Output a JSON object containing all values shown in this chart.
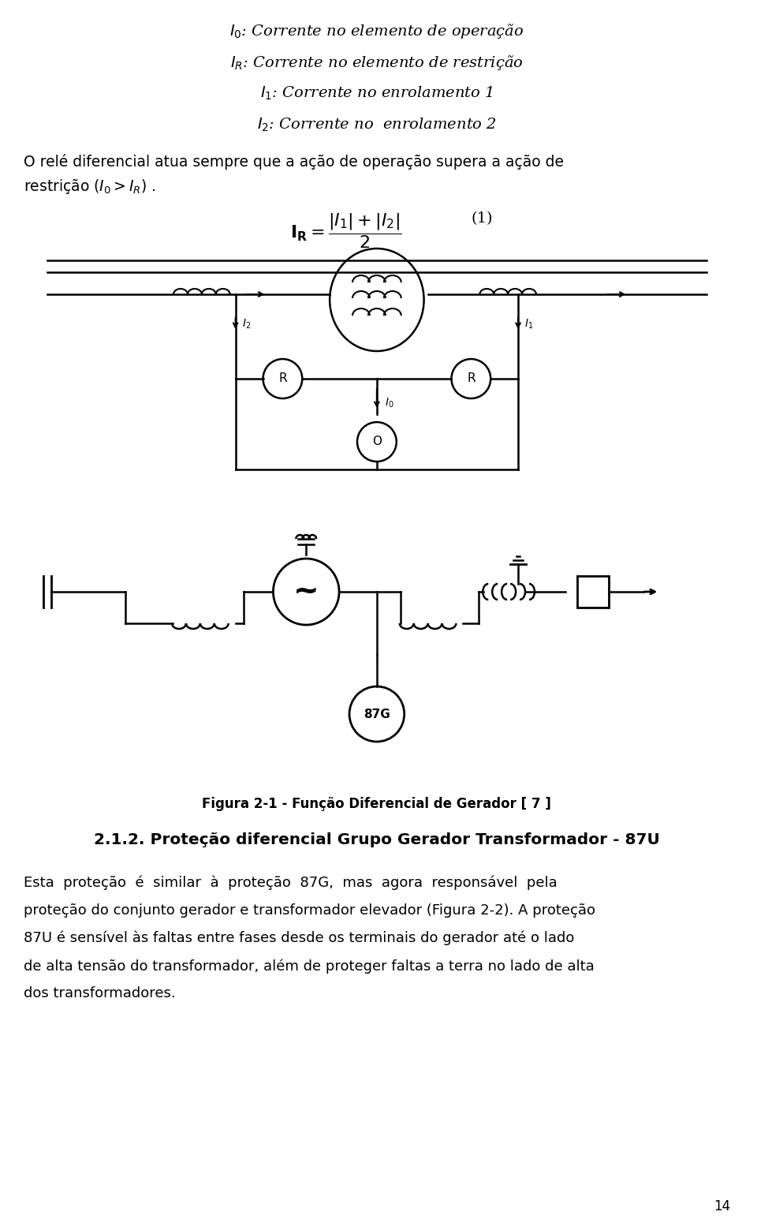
{
  "bg_color": "#ffffff",
  "text_color": "#000000",
  "page_number": "14",
  "line1": "$I_0$: Corrente no elemento de operação",
  "line2": "$I_R$: Corrente no elemento de restrição",
  "line3": "$I_1$: Corrente no enrolamento 1",
  "line4": "$I_2$: Corrente no  enrolamento 2",
  "para1": "O relé diferencial atua sempre que a ação de operação supera a ação de",
  "para1b": "restrição ($I_0 > I_R$) .",
  "eq_label": "$\\mathbf{I_R} = \\dfrac{|I_1|+|I_2|}{2}$",
  "eq_number": "(1)",
  "fig_caption": "Figura 2-1 - Função Diferencial de Gerador [ 7 ]",
  "section": "2.1.2. Proteção diferencial Grupo Gerador Transformador - 87U",
  "body1": "Esta  proteção  é  similar  à  proteção  87G,  mas  agora  responsável  pela",
  "body2": "proteção do conjunto gerador e transformador elevador (Figura 2-2). A proteção",
  "body3": "87U é sensível às faltas entre fases desde os terminais do gerador até o lado",
  "body4": "de alta tensão do transformador, além de proteger faltas a terra no lado de alta",
  "body5": "dos transformadores."
}
